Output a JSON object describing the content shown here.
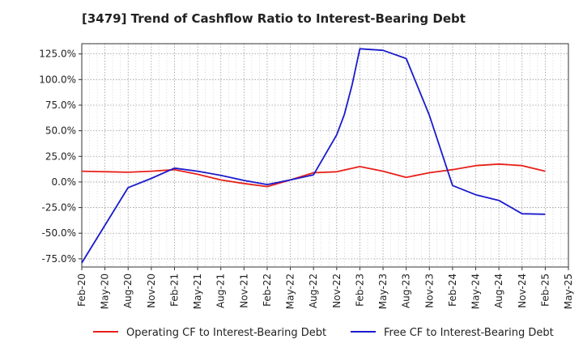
{
  "chart_data": {
    "type": "line",
    "title": "[3479]  Trend of Cashflow Ratio to Interest-Bearing Debt",
    "xlabel": "",
    "ylabel": "",
    "x_tick_labels": [
      "Feb-20",
      "May-20",
      "Aug-20",
      "Nov-20",
      "Feb-21",
      "May-21",
      "Aug-21",
      "Nov-21",
      "Feb-22",
      "May-22",
      "Aug-22",
      "Nov-22",
      "Feb-23",
      "May-23",
      "Aug-23",
      "Nov-23",
      "Feb-24",
      "May-24",
      "Aug-24",
      "Nov-24",
      "Feb-25",
      "May-25"
    ],
    "y_ticks": [
      -75,
      -50,
      -25,
      0,
      25,
      50,
      75,
      100,
      125
    ],
    "y_tick_labels": [
      "-75.0%",
      "-50.0%",
      "-25.0%",
      "0.0%",
      "25.0%",
      "50.0%",
      "75.0%",
      "100.0%",
      "125.0%"
    ],
    "ylim": [
      -83,
      135
    ],
    "grid": true,
    "legend_position": "bottom",
    "series": [
      {
        "name": "Operating CF to Interest-Bearing Debt",
        "color": "#e8201a",
        "values": [
          {
            "x": "Feb-20",
            "y": 10.5
          },
          {
            "x": "Aug-20",
            "y": 9.5
          },
          {
            "x": "Nov-20",
            "y": 10.5
          },
          {
            "x": "Feb-21",
            "y": 12
          },
          {
            "x": "May-21",
            "y": 7.5
          },
          {
            "x": "Aug-21",
            "y": 2
          },
          {
            "x": "Nov-21",
            "y": -1.5
          },
          {
            "x": "Feb-22",
            "y": -4.5
          },
          {
            "x": "May-22",
            "y": 2
          },
          {
            "x": "Aug-22",
            "y": 9
          },
          {
            "x": "Nov-22",
            "y": 10
          },
          {
            "x": "Feb-23",
            "y": 15
          },
          {
            "x": "May-23",
            "y": 10.5
          },
          {
            "x": "Aug-23",
            "y": 4.5
          },
          {
            "x": "Nov-23",
            "y": 9
          },
          {
            "x": "Feb-24",
            "y": 12
          },
          {
            "x": "May-24",
            "y": 16
          },
          {
            "x": "Aug-24",
            "y": 17.5
          },
          {
            "x": "Nov-24",
            "y": 16
          },
          {
            "x": "Feb-25",
            "y": 10.5
          }
        ]
      },
      {
        "name": "Free CF to Interest-Bearing Debt",
        "color": "#1a1acc",
        "values": [
          {
            "x": "Feb-20",
            "y": -79
          },
          {
            "x": "Aug-20",
            "y": -5.5
          },
          {
            "x": "Nov-20",
            "y": 3.5
          },
          {
            "x": "Feb-21",
            "y": 13.5
          },
          {
            "x": "May-21",
            "y": 10.5
          },
          {
            "x": "Aug-21",
            "y": 6.5
          },
          {
            "x": "Nov-21",
            "y": 1.5
          },
          {
            "x": "Feb-22",
            "y": -2.5
          },
          {
            "x": "May-22",
            "y": 2
          },
          {
            "x": "Aug-22",
            "y": 7
          },
          {
            "x": "Nov-22",
            "y": 46
          },
          {
            "x": "Dec-22",
            "y": 66
          },
          {
            "x": "Jan-23",
            "y": 95
          },
          {
            "x": "Feb-23",
            "y": 130
          },
          {
            "x": "May-23",
            "y": 128.5
          },
          {
            "x": "Aug-23",
            "y": 120.5
          },
          {
            "x": "Nov-23",
            "y": 65
          },
          {
            "x": "Feb-24",
            "y": -3.5
          },
          {
            "x": "May-24",
            "y": -12.5
          },
          {
            "x": "Aug-24",
            "y": -18
          },
          {
            "x": "Nov-24",
            "y": -31
          },
          {
            "x": "Feb-25",
            "y": -31.5
          }
        ]
      }
    ]
  }
}
